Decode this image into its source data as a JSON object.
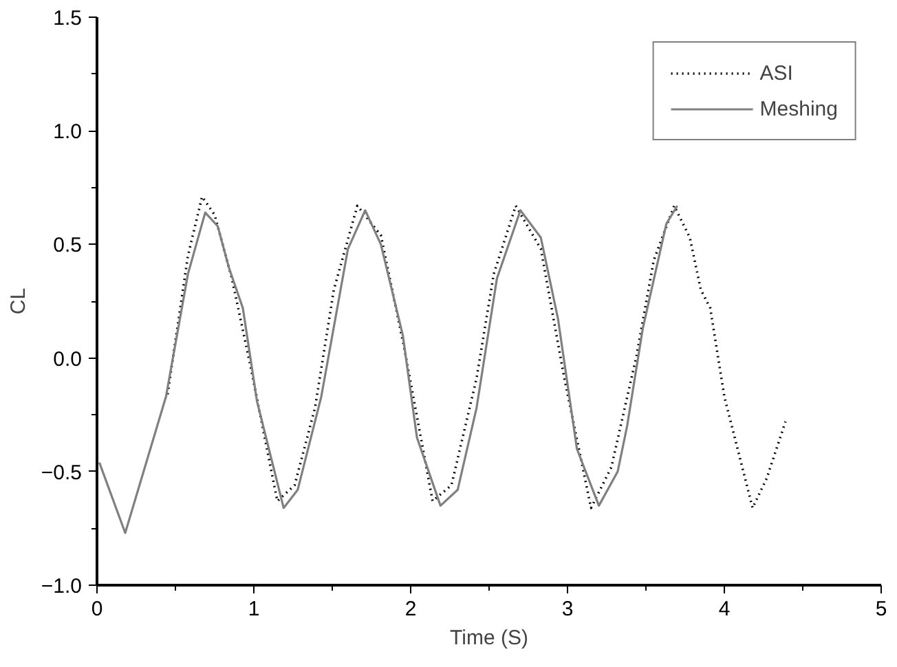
{
  "chart_data": {
    "type": "line",
    "xlabel": "Time (S)",
    "ylabel": "CL",
    "xlim": [
      0,
      5
    ],
    "ylim": [
      -1.0,
      1.5
    ],
    "xticks": [
      0,
      1,
      2,
      3,
      4,
      5
    ],
    "yticks": [
      {
        "value": -1.0,
        "label": "−1.0"
      },
      {
        "value": -0.5,
        "label": "−0.5"
      },
      {
        "value": 0,
        "label": "0.0"
      },
      {
        "value": 0.5,
        "label": "0.5"
      },
      {
        "value": 1.0,
        "label": "1.0"
      },
      {
        "value": 1.5,
        "label": "1.5"
      }
    ],
    "grid": false,
    "legend": "top right",
    "marker": "none",
    "series": [
      {
        "name": "ASI",
        "color": "#000000",
        "line_style": "dotted",
        "x": [
          0.45,
          0.58,
          0.67,
          0.75,
          0.86,
          0.98,
          1.15,
          1.26,
          1.39,
          1.51,
          1.66,
          1.81,
          1.96,
          2.14,
          2.26,
          2.42,
          2.53,
          2.67,
          2.83,
          2.98,
          3.15,
          3.28,
          3.44,
          3.55,
          3.68,
          3.78,
          3.85,
          3.91,
          4.0,
          4.18,
          4.27,
          4.39
        ],
        "values": [
          -0.16,
          0.45,
          0.71,
          0.63,
          0.35,
          -0.04,
          -0.63,
          -0.56,
          -0.22,
          0.3,
          0.67,
          0.54,
          0.04,
          -0.63,
          -0.56,
          -0.09,
          0.37,
          0.67,
          0.48,
          -0.09,
          -0.66,
          -0.48,
          0.01,
          0.43,
          0.67,
          0.53,
          0.3,
          0.22,
          -0.17,
          -0.66,
          -0.53,
          -0.28
        ]
      },
      {
        "name": "Meshing",
        "color": "#808080",
        "line_style": "solid",
        "x": [
          0.015,
          0.18,
          0.44,
          0.58,
          0.69,
          0.77,
          0.84,
          0.93,
          1.02,
          1.19,
          1.28,
          1.43,
          1.6,
          1.71,
          1.81,
          1.95,
          2.04,
          2.19,
          2.3,
          2.42,
          2.55,
          2.7,
          2.83,
          2.94,
          3.06,
          3.2,
          3.32,
          3.38,
          3.48,
          3.63,
          3.7
        ],
        "values": [
          -0.46,
          -0.77,
          -0.17,
          0.37,
          0.64,
          0.58,
          0.4,
          0.22,
          -0.19,
          -0.66,
          -0.58,
          -0.17,
          0.48,
          0.65,
          0.5,
          0.1,
          -0.35,
          -0.65,
          -0.58,
          -0.22,
          0.35,
          0.65,
          0.53,
          0.17,
          -0.4,
          -0.65,
          -0.5,
          -0.3,
          0.13,
          0.59,
          0.67
        ]
      }
    ]
  }
}
